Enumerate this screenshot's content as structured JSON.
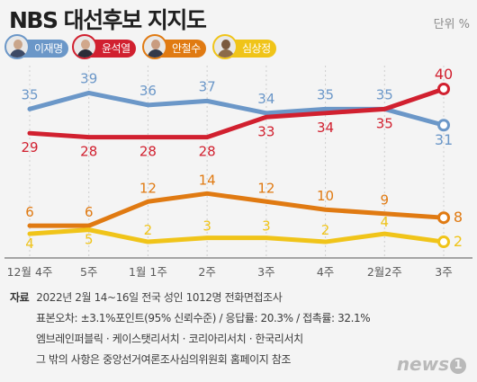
{
  "header": {
    "title": "NBS 대선후보 지지도",
    "unit": "단위 %"
  },
  "candidates": [
    {
      "name": "이재명",
      "color": "#6b97c8"
    },
    {
      "name": "윤석열",
      "color": "#d1202f"
    },
    {
      "name": "안철수",
      "color": "#e07a12"
    },
    {
      "name": "심상정",
      "color": "#f0c419"
    }
  ],
  "chart_data": {
    "type": "line",
    "categories": [
      "12월 4주",
      "5주",
      "1월 1주",
      "2주",
      "3주",
      "4주",
      "2월2주",
      "3주"
    ],
    "series": [
      {
        "name": "이재명",
        "values": [
          35,
          39,
          36,
          37,
          34,
          35,
          35,
          31
        ],
        "color": "#6b97c8"
      },
      {
        "name": "윤석열",
        "values": [
          29,
          28,
          28,
          28,
          33,
          34,
          35,
          40
        ],
        "color": "#d1202f"
      },
      {
        "name": "안철수",
        "values": [
          6,
          6,
          12,
          14,
          12,
          10,
          9,
          8
        ],
        "color": "#e07a12"
      },
      {
        "name": "심상정",
        "values": [
          4,
          5,
          2,
          3,
          3,
          2,
          4,
          2
        ],
        "color": "#f0c419"
      }
    ],
    "ylim": [
      0,
      42
    ],
    "grid": false,
    "legend": "top-left"
  },
  "footer": {
    "source_label": "자료",
    "lines": [
      "2022년 2월 14~16일 전국 성인 1012명 전화면접조사",
      "표본오차: ±3.1%포인트(95% 신뢰수준) / 응답률: 20.3% / 접촉률: 32.1%",
      "엠브레인퍼블릭 · 케이스탯리서치 · 코리아리서치 · 한국리서치",
      "그 밖의 사항은 중앙선거여론조사심의위원회 홈페이지 참조"
    ],
    "logo": "news",
    "logo_mark": "1"
  }
}
